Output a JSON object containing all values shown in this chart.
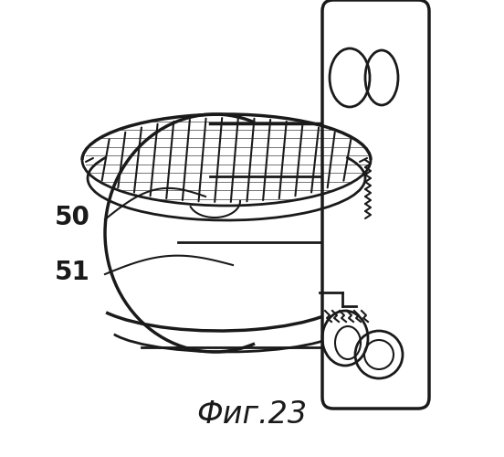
{
  "title": "Фиг.23",
  "label_50": "50",
  "label_51": "51",
  "bg_color": "#ffffff",
  "line_color": "#1a1a1a",
  "title_fontsize": 24,
  "label_fontsize": 20,
  "figsize": [
    5.52,
    5.0
  ],
  "dpi": 100
}
